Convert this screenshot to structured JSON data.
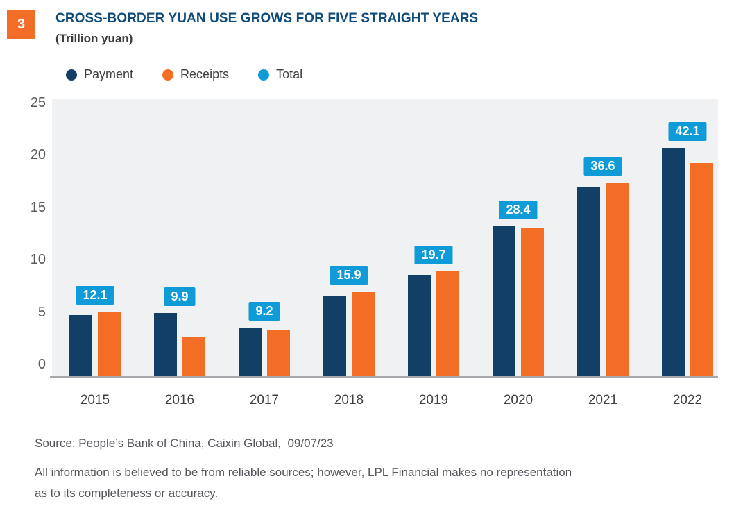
{
  "header": {
    "figure_number": "3",
    "title": "CROSS-BORDER YUAN USE GROWS FOR FIVE STRAIGHT YEARS",
    "subtitle": "(Trillion yuan)"
  },
  "colors": {
    "badge_orange": "#f26d28",
    "title_blue": "#0f4c7c",
    "payment_navy": "#123f66",
    "receipts_orange": "#f36d25",
    "total_blue": "#0f9bd7",
    "plot_background": "#f0f1f2",
    "axis_gray": "#a6a8ab"
  },
  "chart_data": {
    "type": "bar",
    "title": "CROSS-BORDER YUAN USE GROWS FOR FIVE STRAIGHT YEARS",
    "subtitle": "(Trillion yuan)",
    "categories": [
      "2015",
      "2016",
      "2017",
      "2018",
      "2019",
      "2020",
      "2021",
      "2022"
    ],
    "series": [
      {
        "name": "Payment",
        "color": "#123f66",
        "values": [
          5.9,
          6.1,
          4.7,
          7.7,
          9.7,
          14.3,
          18.1,
          21.8
        ]
      },
      {
        "name": "Receipts",
        "color": "#f36d25",
        "values": [
          6.2,
          3.8,
          4.5,
          8.1,
          10.0,
          14.1,
          18.5,
          20.3
        ]
      }
    ],
    "total_labels": {
      "name": "Total",
      "color": "#0f9bd7",
      "values": [
        "12.1",
        "9.9",
        "9.2",
        "15.9",
        "19.7",
        "28.4",
        "36.6",
        "42.1"
      ]
    },
    "ylabel": "",
    "xlabel": "",
    "ylim": [
      0,
      25
    ],
    "yticks": [
      25,
      20,
      15,
      10,
      5,
      0
    ],
    "grid": false,
    "legend_position": "top"
  },
  "footer": {
    "source": "Source: People’s Bank of China, Caixin Global,  09/07/23",
    "disclaimer_line1": "All information is believed to be from reliable sources; however, LPL Financial makes no representation",
    "disclaimer_line2": "as to its completeness or accuracy."
  }
}
